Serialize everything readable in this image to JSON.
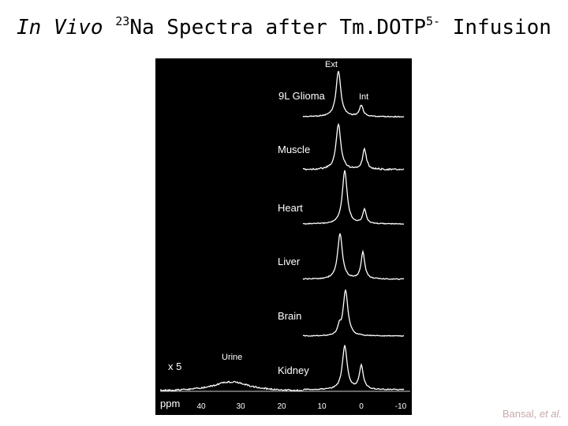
{
  "slide": {
    "title_italic": "In Vivo",
    "title_isotope_mass": "23",
    "title_isotope": "Na",
    "title_mid": " Spectra after Tm",
    "title_agent": "DOTP",
    "title_charge": "5-",
    "title_end": " Infusion"
  },
  "spectra": {
    "peak_labels": {
      "ext": "Ext",
      "int": "Int"
    },
    "tissues": [
      {
        "name": "9L Glioma"
      },
      {
        "name": "Muscle"
      },
      {
        "name": "Heart"
      },
      {
        "name": "Liver"
      },
      {
        "name": "Brain"
      },
      {
        "name": "Kidney"
      }
    ],
    "urine": {
      "label": "Urine",
      "scale": "x 5"
    },
    "axis": {
      "unit": "ppm",
      "ticks": [
        "40",
        "30",
        "20",
        "10",
        "0",
        "-10"
      ]
    }
  },
  "citation": {
    "author": "Bansal, ",
    "etal": "et al."
  }
}
